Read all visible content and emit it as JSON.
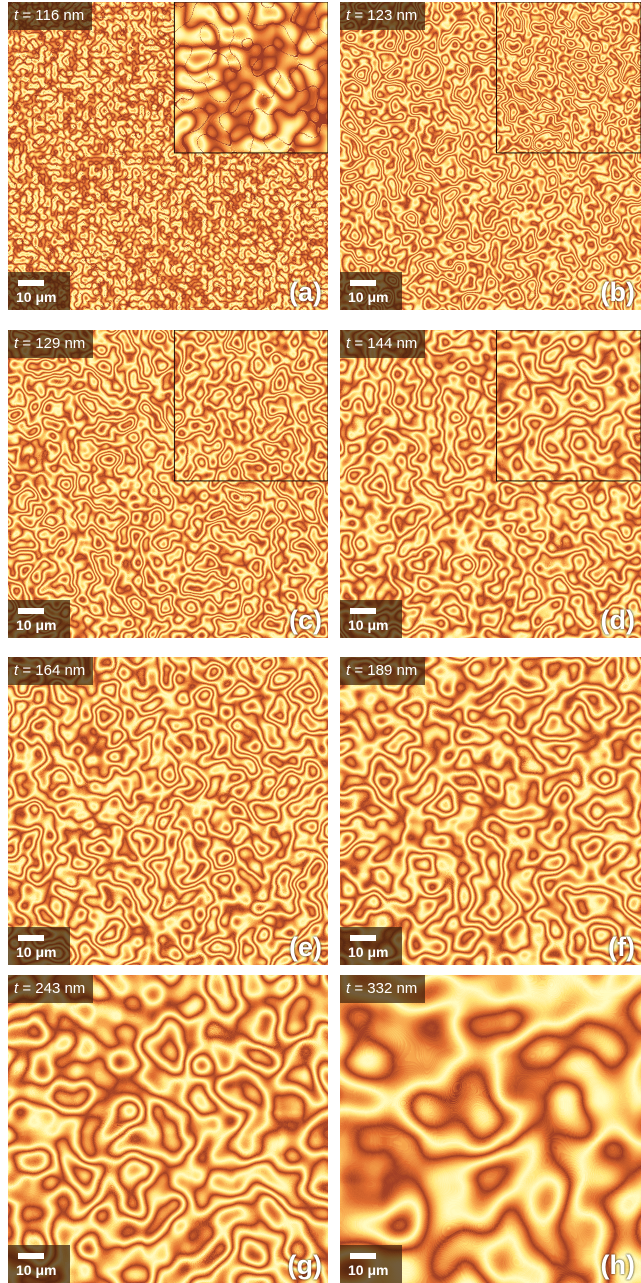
{
  "panels": [
    {
      "symbol": "t",
      "thickness": " = 116 nm",
      "scale_bar": "10 μm",
      "letter": "(a)"
    },
    {
      "symbol": "t",
      "thickness": " = 123 nm",
      "scale_bar": "10 μm",
      "letter": "(b)"
    },
    {
      "symbol": "t",
      "thickness": " = 129 nm",
      "scale_bar": "10 μm",
      "letter": "(c)"
    },
    {
      "symbol": "t",
      "thickness": " = 144 nm",
      "scale_bar": "10 μm",
      "letter": "(d)"
    },
    {
      "symbol": "t",
      "thickness": " = 164 nm",
      "scale_bar": "10 μm",
      "letter": "(e)"
    },
    {
      "symbol": "t",
      "thickness": " = 189 nm",
      "scale_bar": "10 μm",
      "letter": "(f)"
    },
    {
      "symbol": "t",
      "thickness": " = 243 nm",
      "scale_bar": "10 μm",
      "letter": "(g)"
    },
    {
      "symbol": "t",
      "thickness": " = 332 nm",
      "scale_bar": "10 μm",
      "letter": "(h)"
    }
  ]
}
